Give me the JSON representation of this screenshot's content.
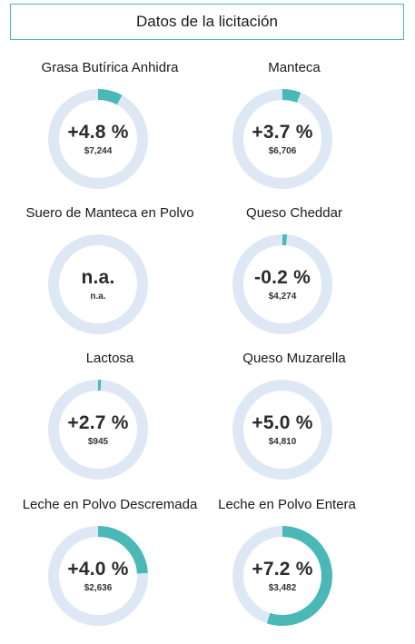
{
  "header": {
    "title": "Datos de la licitación"
  },
  "colors": {
    "accent": "#4bb8b8",
    "track": "#dde8f4",
    "border": "#4bb8b8"
  },
  "cards": [
    {
      "title": "Grasa Butírica Anhidra",
      "pct": "+4.8 %",
      "value": "$7,244",
      "fill": 0.08
    },
    {
      "title": "Manteca",
      "pct": "+3.7 %",
      "value": "$6,706",
      "fill": 0.06
    },
    {
      "title": "Suero de Manteca en Polvo",
      "pct": "n.a.",
      "value": "n.a.",
      "fill": 0
    },
    {
      "title": "Queso Cheddar",
      "pct": "-0.2 %",
      "value": "$4,274",
      "fill": 0.015
    },
    {
      "title": "Lactosa",
      "pct": "+2.7 %",
      "value": "$945",
      "fill": 0.01
    },
    {
      "title": "Queso Muzarella",
      "pct": "+5.0 %",
      "value": "$4,810",
      "fill": 0
    },
    {
      "title": "Leche en Polvo Descremada",
      "pct": "+4.0 %",
      "value": "$2,636",
      "fill": 0.24
    },
    {
      "title": "Leche en Polvo Entera",
      "pct": "+7.2 %",
      "value": "$3,482",
      "fill": 0.55
    }
  ]
}
